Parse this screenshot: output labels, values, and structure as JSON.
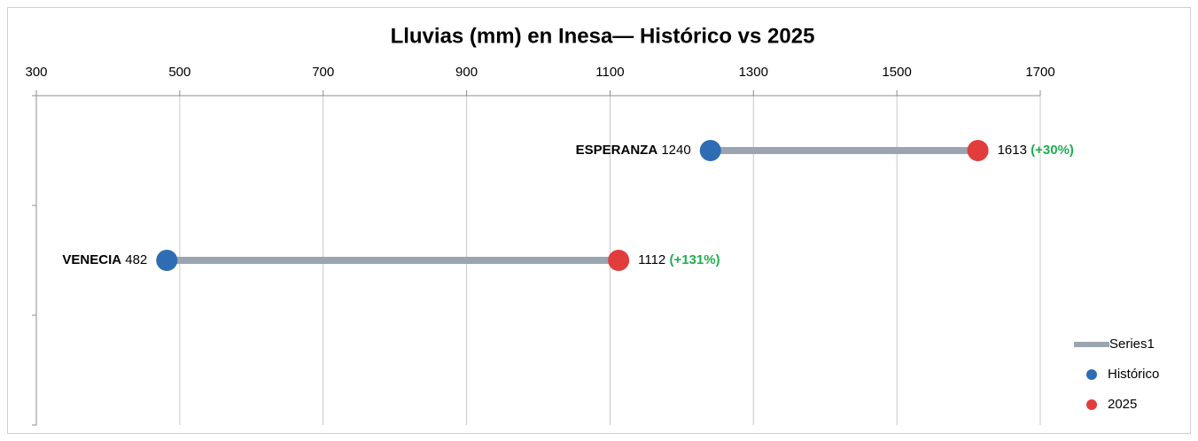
{
  "chart_data": {
    "type": "dumbbell",
    "title": "Lluvias (mm) en Inesa— Histórico vs 2025",
    "categories": [
      "ESPERANZA",
      "VENECIA",
      null
    ],
    "series": [
      {
        "name": "Series1",
        "color": "#9aa5b1"
      },
      {
        "name": "Histórico",
        "color": "#2e6db4",
        "values": [
          1240,
          482,
          null
        ]
      },
      {
        "name": "2025",
        "color": "#e23d3d",
        "values": [
          1613,
          1112,
          null
        ]
      }
    ],
    "change_labels": [
      "(+30%)",
      "(+131%)",
      null
    ],
    "change_color": "#1fae4f",
    "xlim": [
      300,
      1700
    ],
    "xticks": [
      300,
      500,
      700,
      900,
      1100,
      1300,
      1500,
      1700
    ],
    "grid": true,
    "legend": "bottom-right"
  }
}
